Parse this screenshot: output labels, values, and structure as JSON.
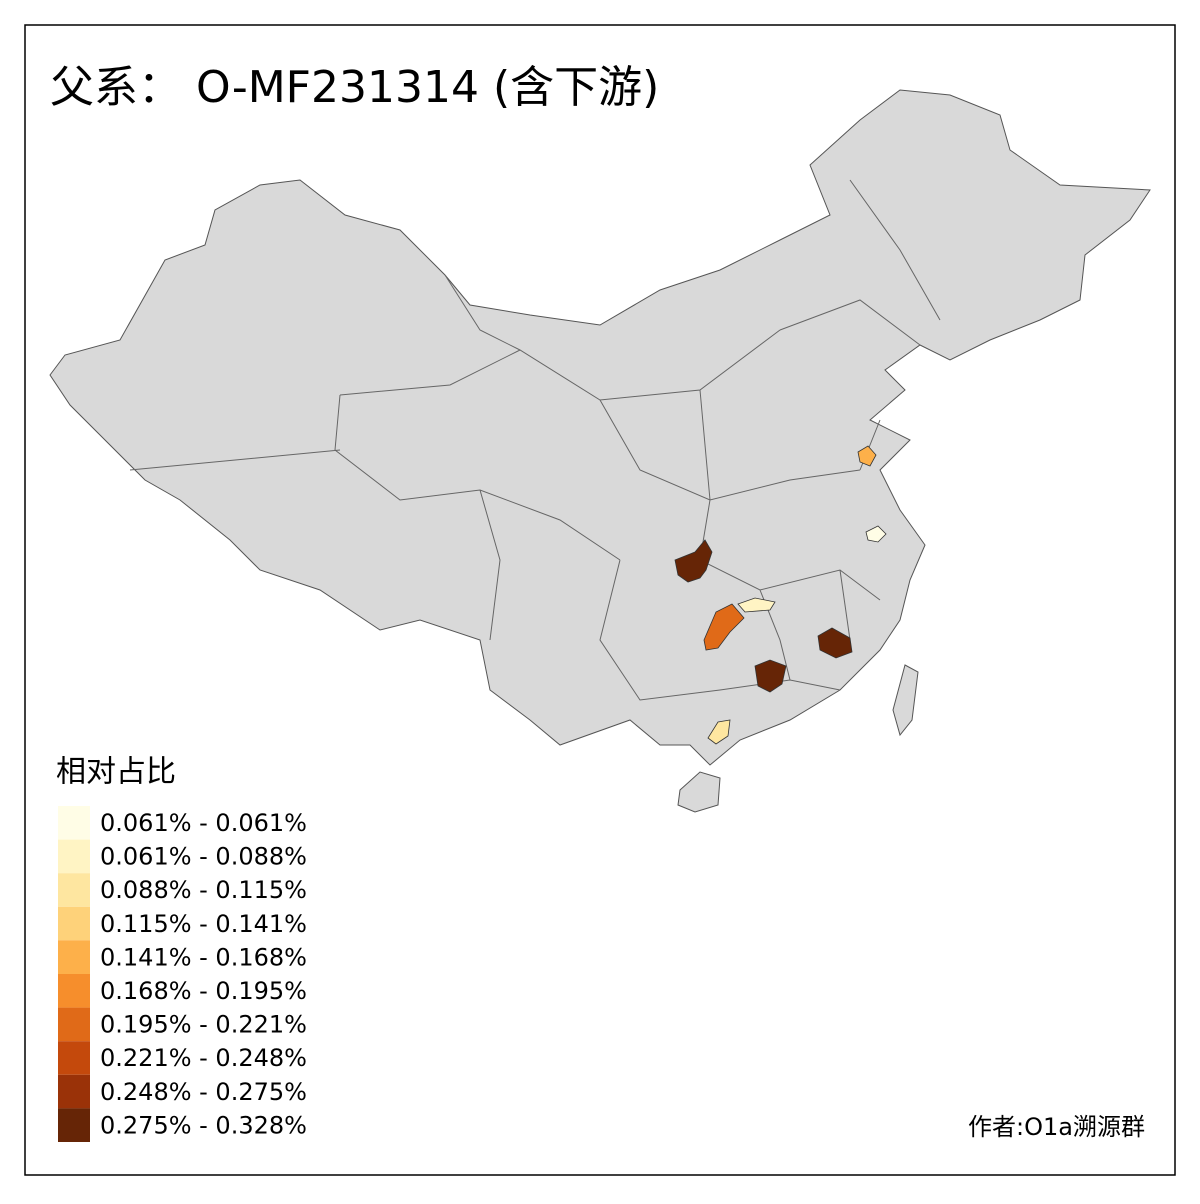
{
  "title": "父系： O-MF231314 (含下游)",
  "legend": {
    "title": "相对占比",
    "items": [
      {
        "label": "0.061% - 0.061%",
        "color": "#fffde6"
      },
      {
        "label": "0.061% - 0.088%",
        "color": "#fff4c4"
      },
      {
        "label": "0.088% - 0.115%",
        "color": "#fee6a0"
      },
      {
        "label": "0.115% - 0.141%",
        "color": "#fed27a"
      },
      {
        "label": "0.141% - 0.168%",
        "color": "#fdb04a"
      },
      {
        "label": "0.168% - 0.195%",
        "color": "#f68e2c"
      },
      {
        "label": "0.195% - 0.221%",
        "color": "#e06a18"
      },
      {
        "label": "0.221% - 0.248%",
        "color": "#c4490c"
      },
      {
        "label": "0.248% - 0.275%",
        "color": "#9a3208"
      },
      {
        "label": "0.275% - 0.328%",
        "color": "#662506"
      }
    ]
  },
  "credit": "作者:O1a溯源群"
}
